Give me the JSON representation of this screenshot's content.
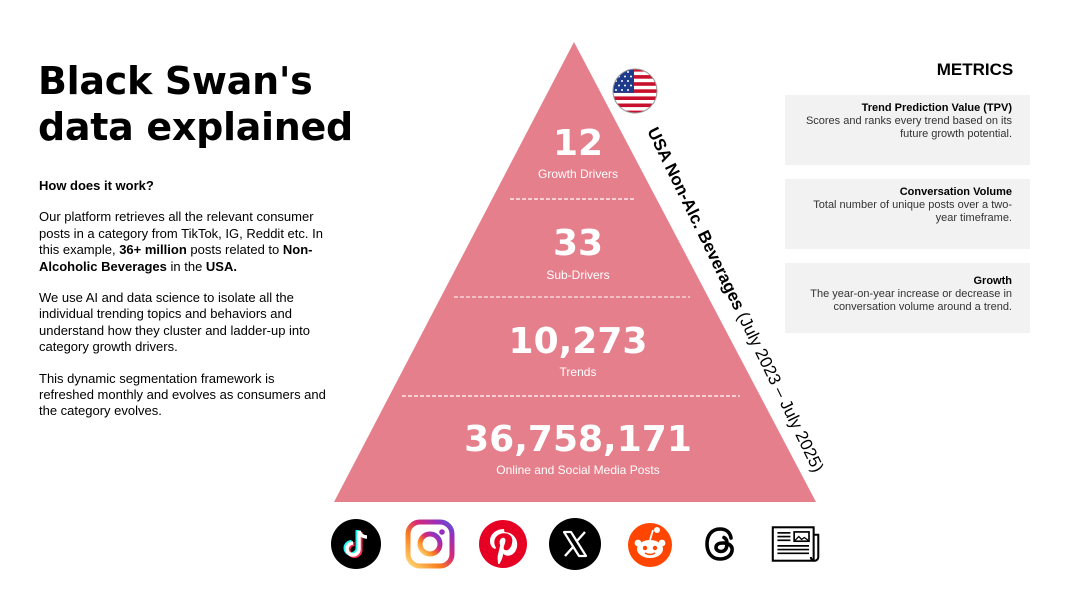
{
  "title": {
    "line1": "Black Swan's",
    "line2": "data explained"
  },
  "intro": {
    "question": "How does it work?",
    "p1": {
      "a": "Our platform retrieves all the relevant consumer posts in a category from TikTok, IG, Reddit etc. In this example, ",
      "b": "36+ million",
      "c": " posts related to ",
      "d": "Non-Alcoholic Beverages",
      "e": " in the ",
      "f": "USA."
    },
    "p2": "We use AI and data science to isolate all the individual trending topics and behaviors and understand how they cluster and ladder-up into category growth drivers.",
    "p3": "This dynamic segmentation framework is refreshed monthly and evolves as consumers and the category evolves."
  },
  "pyramid": {
    "tiers": [
      {
        "value": "12",
        "label": "Growth Drivers"
      },
      {
        "value": "33",
        "label": "Sub-Drivers"
      },
      {
        "value": "10,273",
        "label": "Trends"
      },
      {
        "value": "36,758,171",
        "label": "Online and Social Media Posts"
      }
    ],
    "side_label_bold": "USA Non-Alc. Beverages",
    "side_label_rest": " (July 2023 – July 2025)",
    "color": "#e57f8b"
  },
  "metrics": {
    "heading": "METRICS",
    "items": [
      {
        "title": "Trend Prediction Value (TPV)",
        "desc": "Scores and ranks every trend based on its future growth potential."
      },
      {
        "title": "Conversation Volume",
        "desc": "Total number of unique posts over a two-year timeframe."
      },
      {
        "title": "Growth",
        "desc": "The year-on-year increase or decrease in conversation volume around a trend."
      }
    ]
  },
  "platforms": [
    {
      "icon": "tiktok-icon"
    },
    {
      "icon": "instagram-icon"
    },
    {
      "icon": "pinterest-icon"
    },
    {
      "icon": "x-icon"
    },
    {
      "icon": "reddit-icon"
    },
    {
      "icon": "threads-icon"
    },
    {
      "icon": "news-icon"
    }
  ]
}
